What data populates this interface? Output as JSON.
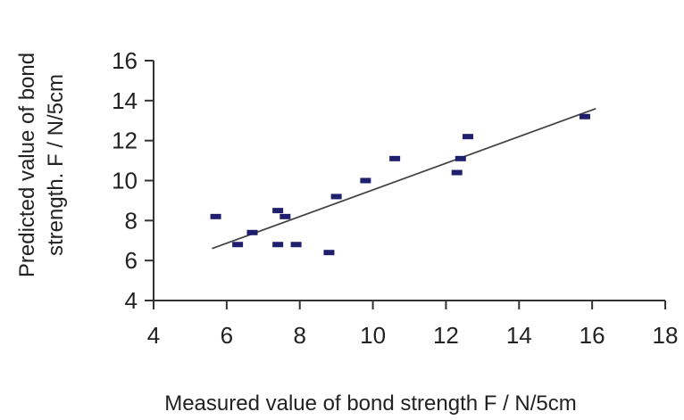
{
  "chart_data": {
    "type": "scatter",
    "xlabel": "Measured value of bond strength  F / N/5cm",
    "ylabel_line1": "Predicted value of bond",
    "ylabel_line2": "strength. F / N/5cm",
    "xlim": [
      4,
      18
    ],
    "ylim": [
      4,
      16
    ],
    "x_ticks": [
      4,
      6,
      8,
      10,
      12,
      14,
      16,
      18
    ],
    "x_tick_labels": [
      "4",
      "6",
      "8",
      "10",
      "12",
      "14",
      "16",
      "18"
    ],
    "y_ticks": [
      4,
      6,
      8,
      10,
      12,
      14,
      16
    ],
    "y_tick_labels": [
      "4",
      "6",
      "8",
      "10",
      "12",
      "14",
      "16"
    ],
    "grid": false,
    "marker_color": "#1f1f6e",
    "line_color": "#444444",
    "points": [
      {
        "x": 5.7,
        "y": 8.2
      },
      {
        "x": 6.3,
        "y": 6.8
      },
      {
        "x": 6.7,
        "y": 7.4
      },
      {
        "x": 7.4,
        "y": 8.5
      },
      {
        "x": 7.4,
        "y": 6.8
      },
      {
        "x": 7.6,
        "y": 8.2
      },
      {
        "x": 7.9,
        "y": 6.8
      },
      {
        "x": 8.8,
        "y": 6.4
      },
      {
        "x": 9.0,
        "y": 9.2
      },
      {
        "x": 9.8,
        "y": 10.0
      },
      {
        "x": 10.6,
        "y": 11.1
      },
      {
        "x": 12.3,
        "y": 10.4
      },
      {
        "x": 12.4,
        "y": 11.1
      },
      {
        "x": 12.6,
        "y": 12.2
      },
      {
        "x": 15.8,
        "y": 13.2
      }
    ],
    "trendline": {
      "x": [
        5.6,
        16.1
      ],
      "y": [
        6.6,
        13.6
      ]
    }
  }
}
